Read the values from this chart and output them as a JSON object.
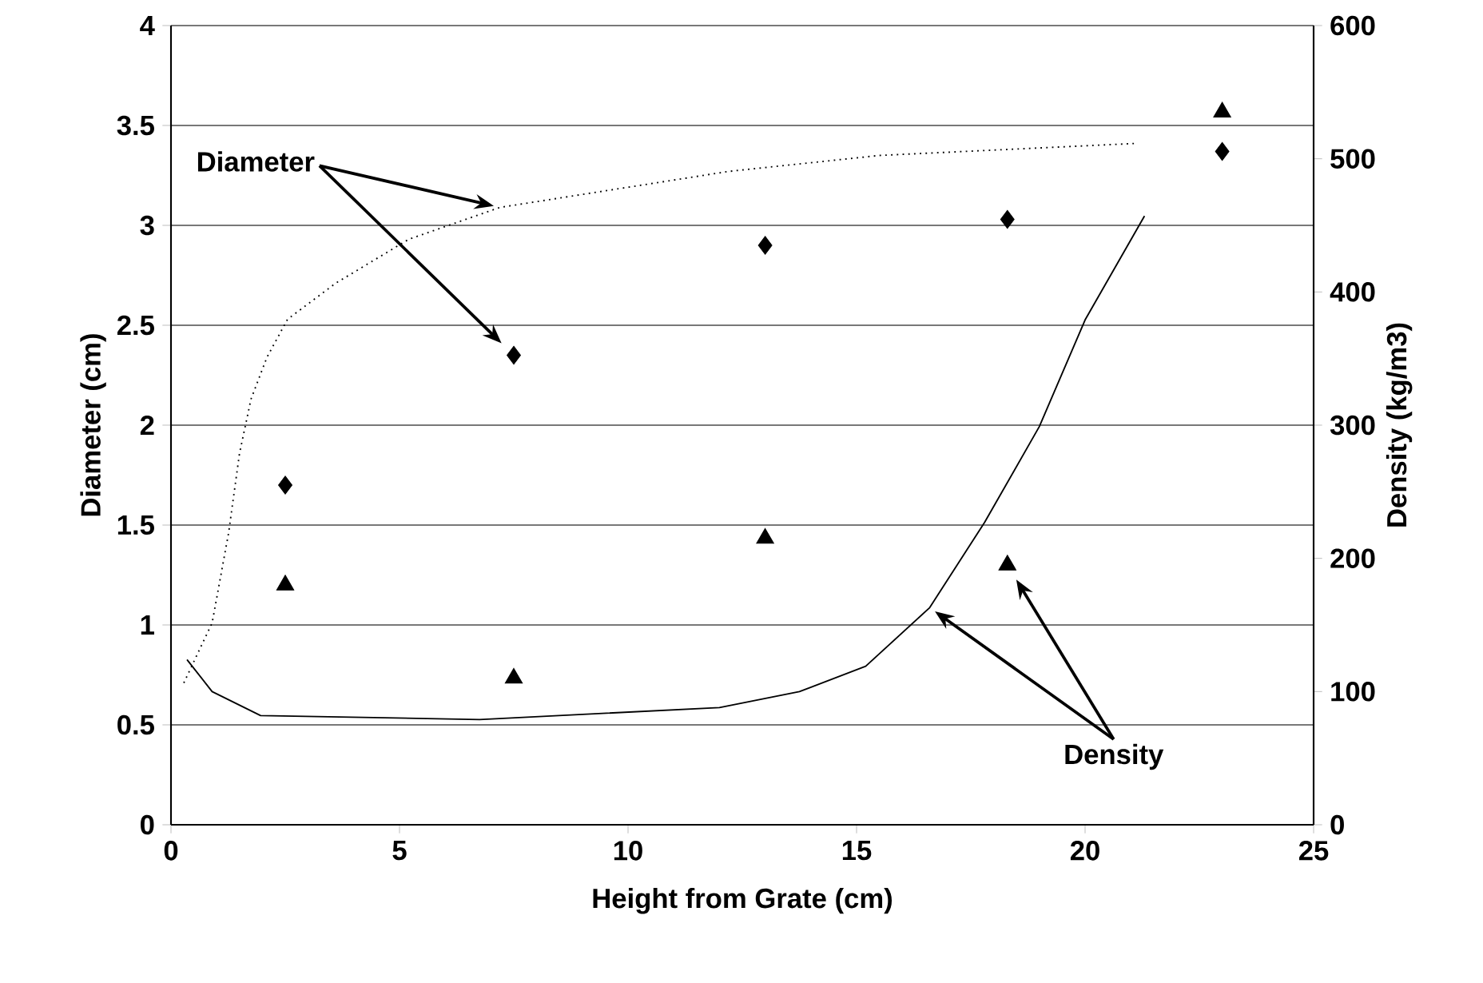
{
  "chart_data": {
    "type": "scatter",
    "xlabel": "Height from Grate (cm)",
    "ylabel": "Diameter (cm)",
    "y2label": "Density (kg/m3)",
    "xlim": [
      0,
      25
    ],
    "xticks": [
      0,
      5,
      10,
      15,
      20,
      25
    ],
    "ylim": [
      0,
      4
    ],
    "yticks": [
      0,
      0.5,
      1,
      1.5,
      2,
      2.5,
      3,
      3.5,
      4
    ],
    "y2lim": [
      0,
      600
    ],
    "y2ticks": [
      0,
      100,
      200,
      300,
      400,
      500,
      600
    ],
    "grid": "y",
    "series": [
      {
        "color": "#000000",
        "marker": "diamond",
        "x": [
          2.5,
          7.5,
          13,
          18.3,
          23
        ],
        "values": [
          1.7,
          2.35,
          2.9,
          3.03,
          3.37
        ]
      },
      {
        "color": "#000000",
        "marker": "triangle",
        "axis": "y2",
        "x": [
          2.5,
          7.5,
          13,
          18.3,
          23
        ],
        "values": [
          180,
          110,
          215,
          195,
          535
        ]
      },
      {
        "type": "line",
        "color": "#000000",
        "line_style": "dotted",
        "marker": "none",
        "x": [
          0.28,
          0.9,
          1.26,
          1.5,
          1.75,
          2.1,
          2.55,
          3.6,
          5.2,
          7.2,
          12.2,
          15.5,
          21.1
        ],
        "values": [
          0.71,
          1.01,
          1.46,
          1.86,
          2.13,
          2.34,
          2.53,
          2.71,
          2.93,
          3.09,
          3.27,
          3.35,
          3.41
        ]
      },
      {
        "type": "line",
        "color": "#000000",
        "line_style": "solid",
        "marker": "none",
        "axis": "y2",
        "x": [
          0.35,
          0.9,
          1.96,
          6.75,
          12.0,
          13.75,
          15.2,
          16.6,
          17.8,
          19.0,
          20.0,
          21.3
        ],
        "values": [
          124,
          100,
          82,
          79,
          88,
          100,
          119,
          163,
          227,
          299,
          379,
          457
        ]
      }
    ],
    "annotations": [
      "Diameter",
      "Density"
    ]
  }
}
